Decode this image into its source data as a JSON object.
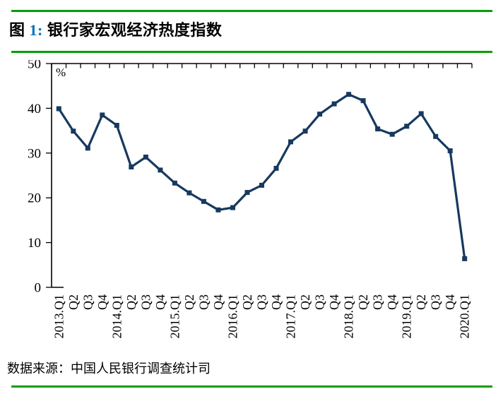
{
  "figure": {
    "title_prefix": "图 ",
    "title_number": "1:",
    "title_text": " 银行家宏观经济热度指数",
    "source_note": "数据来源：中国人民银行调查统计司"
  },
  "colors": {
    "rule_green": "#00A000",
    "title_number_blue": "#0070C0",
    "series_navy": "#17395F",
    "axis_black": "#000000"
  },
  "chart_data": {
    "type": "line",
    "title": "银行家宏观经济热度指数",
    "unit_label": "%",
    "categories": [
      "2013.Q1",
      "Q2",
      "Q3",
      "Q4",
      "2014.Q1",
      "Q2",
      "Q3",
      "Q4",
      "2015.Q1",
      "Q2",
      "Q3",
      "Q4",
      "2016.Q1",
      "Q2",
      "Q3",
      "Q4",
      "2017.Q1",
      "Q2",
      "Q3",
      "Q4",
      "2018.Q1",
      "Q2",
      "Q3",
      "Q4",
      "2019.Q1",
      "Q2",
      "Q3",
      "Q4",
      "2020.Q1"
    ],
    "series": [
      {
        "name": "银行家宏观经济热度指数",
        "values": [
          39.9,
          34.9,
          31.1,
          38.5,
          36.2,
          26.9,
          29.1,
          26.2,
          23.3,
          21.1,
          19.2,
          17.3,
          17.8,
          21.2,
          22.8,
          26.6,
          32.5,
          34.9,
          38.7,
          41.0,
          43.1,
          41.7,
          35.4,
          34.2,
          36.0,
          38.8,
          33.7,
          30.5,
          6.4
        ]
      }
    ],
    "xlabel": "",
    "ylabel": "%",
    "ylim": [
      0,
      50
    ],
    "yticks": [
      0,
      10,
      20,
      30,
      40,
      50
    ],
    "grid": "off",
    "legend": "none",
    "marker": "square",
    "x_tick_position": "top",
    "x_label_rotation": -90
  }
}
